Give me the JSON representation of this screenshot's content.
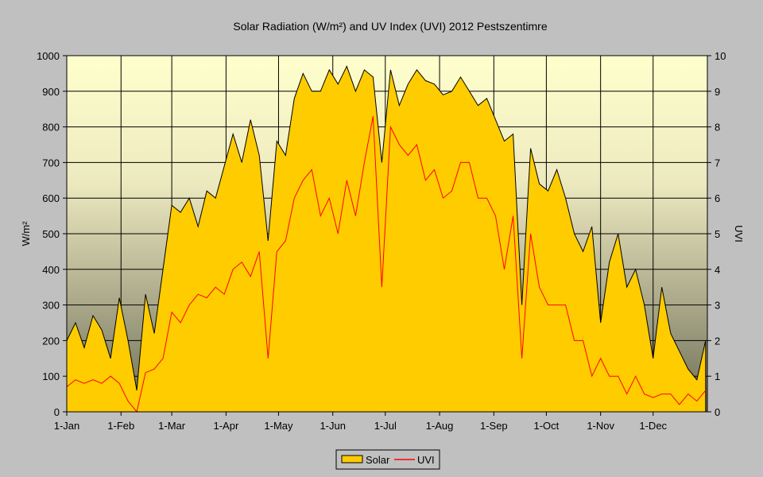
{
  "chart_data": {
    "type": "area",
    "title": "Solar Radiation (W/m²) and UV Index (UVI) 2012 Pestszentimre",
    "ylabel": "W/m²",
    "y2label": "UVI",
    "ylim": [
      0,
      1000
    ],
    "y2lim": [
      0,
      10
    ],
    "yticks": [
      "0",
      "100",
      "200",
      "300",
      "400",
      "500",
      "600",
      "700",
      "800",
      "900",
      "1000"
    ],
    "y2ticks": [
      "0",
      "1",
      "2",
      "3",
      "4",
      "5",
      "6",
      "7",
      "8",
      "9",
      "10"
    ],
    "xlim_days": [
      0,
      366
    ],
    "month_ticks": [
      {
        "label": "1-Jan",
        "day": 0
      },
      {
        "label": "1-Feb",
        "day": 31
      },
      {
        "label": "1-Mar",
        "day": 60
      },
      {
        "label": "1-Apr",
        "day": 91
      },
      {
        "label": "1-May",
        "day": 121
      },
      {
        "label": "1-Jun",
        "day": 152
      },
      {
        "label": "1-Jul",
        "day": 182
      },
      {
        "label": "1-Aug",
        "day": 213
      },
      {
        "label": "1-Sep",
        "day": 244
      },
      {
        "label": "1-Oct",
        "day": 274
      },
      {
        "label": "1-Nov",
        "day": 305
      },
      {
        "label": "1-Dec",
        "day": 335
      }
    ],
    "grid": true,
    "legend_position": "bottom-center",
    "x_step_days": 5,
    "series": [
      {
        "name": "Solar",
        "axis": "left",
        "type": "area",
        "color": "#ffcc00",
        "outline": "#000000",
        "values": [
          200,
          250,
          180,
          270,
          230,
          150,
          320,
          200,
          60,
          330,
          220,
          400,
          580,
          560,
          600,
          520,
          620,
          600,
          690,
          780,
          700,
          820,
          720,
          480,
          760,
          720,
          880,
          950,
          900,
          900,
          960,
          920,
          970,
          900,
          960,
          940,
          700,
          960,
          860,
          920,
          960,
          930,
          920,
          890,
          900,
          940,
          900,
          860,
          880,
          820,
          760,
          780,
          300,
          740,
          640,
          620,
          680,
          600,
          500,
          450,
          520,
          250,
          420,
          500,
          350,
          400,
          300,
          150,
          350,
          220,
          170,
          120,
          90,
          200
        ]
      },
      {
        "name": "UVI",
        "axis": "right",
        "type": "line",
        "color": "#ff0000",
        "values": [
          0.7,
          0.9,
          0.8,
          0.9,
          0.8,
          1.0,
          0.8,
          0.3,
          0.0,
          1.1,
          1.2,
          1.5,
          2.8,
          2.5,
          3.0,
          3.3,
          3.2,
          3.5,
          3.3,
          4.0,
          4.2,
          3.8,
          4.5,
          1.5,
          4.5,
          4.8,
          6.0,
          6.5,
          6.8,
          5.5,
          6.0,
          5.0,
          6.5,
          5.5,
          7.0,
          8.3,
          3.5,
          8.0,
          7.5,
          7.2,
          7.5,
          6.5,
          6.8,
          6.0,
          6.2,
          7.0,
          7.0,
          6.0,
          6.0,
          5.5,
          4.0,
          5.5,
          1.5,
          5.0,
          3.5,
          3.0,
          3.0,
          3.0,
          2.0,
          2.0,
          1.0,
          1.5,
          1.0,
          1.0,
          0.5,
          1.0,
          0.5,
          0.4,
          0.5,
          0.5,
          0.2,
          0.5,
          0.3,
          0.6
        ]
      }
    ]
  }
}
